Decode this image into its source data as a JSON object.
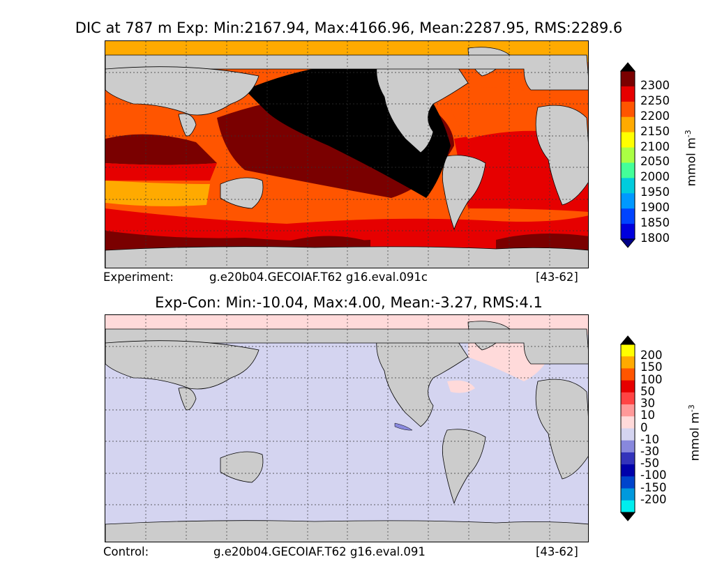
{
  "panels": [
    {
      "title": "DIC at 787 m Exp: Min:2167.94, Max:4166.96, Mean:2287.95, RMS:2289.6",
      "footer_left": "Experiment:",
      "footer_mid": "g.e20b04.GECOIAF.T62 g16.eval.091c",
      "footer_right": "[43-62]",
      "ocean_color": "#000000",
      "colorbar": {
        "labels": [
          "2300",
          "2250",
          "2200",
          "2150",
          "2100",
          "2050",
          "2000",
          "1950",
          "1900",
          "1850",
          "1800"
        ],
        "colors": [
          "#000000",
          "#7a0000",
          "#e60000",
          "#ff5500",
          "#ffaa00",
          "#ffff00",
          "#aaff44",
          "#44ff99",
          "#00ccdd",
          "#0099ff",
          "#0044ff",
          "#0000dd",
          "#000088"
        ],
        "unit": "mmol m",
        "unit_exp": "-3"
      }
    },
    {
      "title": "Exp-Con: Min:-10.04, Max:4.00, Mean:-3.27, RMS:4.1",
      "footer_left": "Control:",
      "footer_mid": "g.e20b04.GECOIAF.T62 g16.eval.091",
      "footer_right": "[43-62]",
      "ocean_color": "#d4d4f0",
      "colorbar": {
        "labels": [
          "200",
          "150",
          "100",
          "50",
          "30",
          "10",
          "0",
          "-10",
          "-30",
          "-50",
          "-100",
          "-150",
          "-200"
        ],
        "colors": [
          "#000000",
          "#ffff00",
          "#ffaa00",
          "#ff5500",
          "#e60000",
          "#ff4444",
          "#ff9999",
          "#ffdada",
          "#d4d4f0",
          "#8888dd",
          "#3333bb",
          "#0000aa",
          "#0044cc",
          "#0099dd",
          "#00eeee",
          "#000000"
        ],
        "unit": "mmol m",
        "unit_exp": "-3"
      }
    }
  ]
}
